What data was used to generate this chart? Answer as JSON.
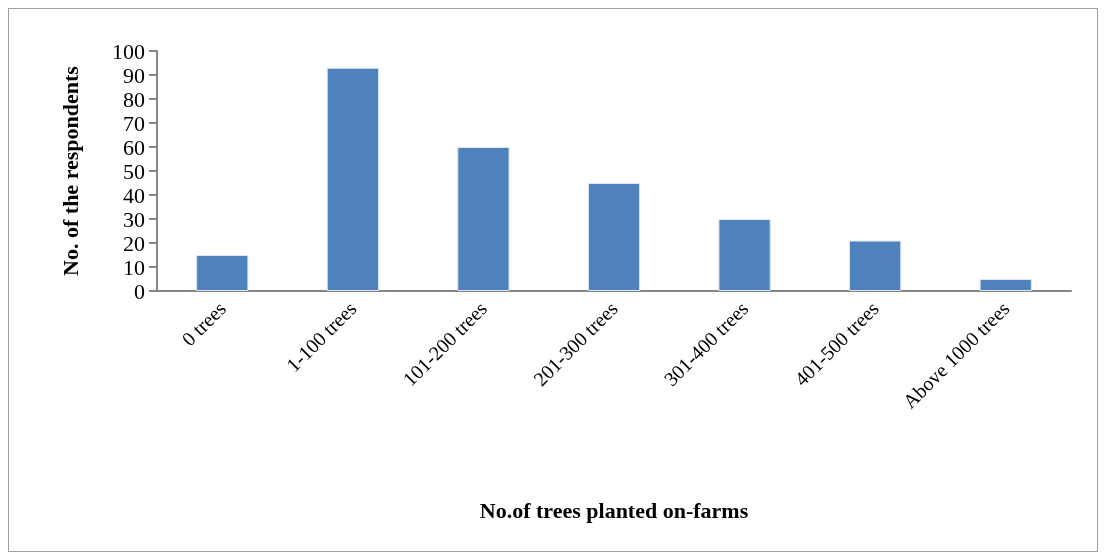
{
  "chart_data": {
    "type": "bar",
    "xlabel": "No.of trees planted on-farms",
    "ylabel": "No. of the respondents",
    "categories": [
      "0 trees",
      "1-100 trees",
      "101-200 trees",
      "201-300 trees",
      "301-400 trees",
      "401-500 trees",
      "Above 1000 trees"
    ],
    "values": [
      15,
      93,
      60,
      45,
      30,
      21,
      5
    ],
    "color": "#4f81bd",
    "ylim": [
      0,
      100
    ],
    "yticks": [
      0,
      10,
      20,
      30,
      40,
      50,
      60,
      70,
      80,
      90,
      100
    ],
    "grid": false
  }
}
